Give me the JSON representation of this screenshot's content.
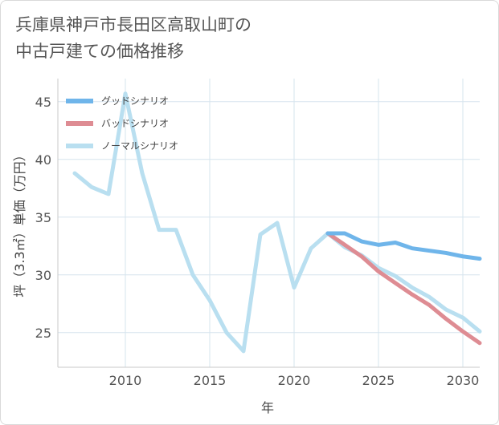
{
  "title_lines": [
    "兵庫県神戸市長田区高取山町の",
    "中古戸建ての価格推移"
  ],
  "chart_data": {
    "type": "line",
    "title": "兵庫県神戸市長田区高取山町の中古戸建ての価格推移",
    "xlabel": "年",
    "ylabel": "坪（3.3㎡）単価（万円）",
    "xlim": [
      2006,
      2031
    ],
    "ylim": [
      22,
      47
    ],
    "xticks": [
      2010,
      2015,
      2020,
      2025,
      2030
    ],
    "yticks": [
      25,
      30,
      35,
      40,
      45
    ],
    "grid": true,
    "legend_position": "top-left",
    "series": [
      {
        "name": "グッドシナリオ",
        "color": "#6fb5ea",
        "x": [
          2022,
          2023,
          2024,
          2025,
          2026,
          2027,
          2028,
          2029,
          2030,
          2031
        ],
        "y": [
          33.6,
          33.6,
          32.9,
          32.6,
          32.8,
          32.3,
          32.1,
          31.9,
          31.6,
          31.4
        ]
      },
      {
        "name": "バッドシナリオ",
        "color": "#de8c93",
        "x": [
          2022,
          2023,
          2024,
          2025,
          2026,
          2027,
          2028,
          2029,
          2030,
          2031
        ],
        "y": [
          33.6,
          32.6,
          31.6,
          30.3,
          29.3,
          28.3,
          27.4,
          26.2,
          25.1,
          24.1
        ]
      },
      {
        "name": "ノーマルシナリオ",
        "color": "#b9dff0",
        "x": [
          2007,
          2008,
          2009,
          2010,
          2011,
          2012,
          2013,
          2014,
          2015,
          2016,
          2017,
          2018,
          2019,
          2020,
          2021,
          2022,
          2023,
          2024,
          2025,
          2026,
          2027,
          2028,
          2029,
          2030,
          2031
        ],
        "y": [
          38.8,
          37.6,
          37.0,
          45.7,
          38.8,
          33.9,
          33.9,
          30.0,
          27.8,
          25.0,
          23.4,
          33.5,
          34.5,
          28.9,
          32.3,
          33.6,
          32.4,
          31.7,
          30.6,
          29.9,
          28.9,
          28.1,
          27.0,
          26.3,
          25.1
        ]
      }
    ]
  }
}
